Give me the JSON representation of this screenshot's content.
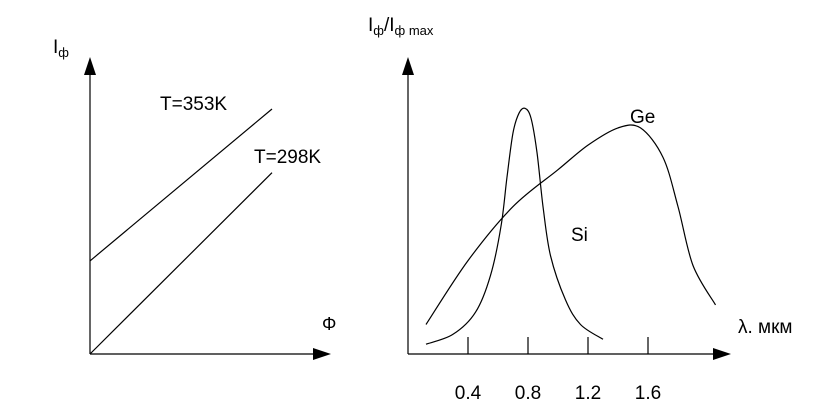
{
  "chart_data": [
    {
      "type": "line",
      "ylabel": {
        "main": "I",
        "sub": "ф"
      },
      "xlabel": "Φ",
      "series": [
        {
          "name": "T=353K",
          "x": [
            0,
            1
          ],
          "y": [
            0.38,
            1.0
          ]
        },
        {
          "name": "T=298K",
          "x": [
            0,
            1
          ],
          "y": [
            0.0,
            0.74
          ]
        }
      ],
      "xlim": [
        0,
        1
      ],
      "ylim": [
        0,
        1.2
      ],
      "grid": false
    },
    {
      "type": "line",
      "ylabel": {
        "main": "I",
        "sub": "ф",
        "sep": "/I",
        "sub2": "ф max"
      },
      "xlabel": "λ. мкм",
      "tick_labels": [
        "0.4",
        "0.8",
        "1.2",
        "1.6"
      ],
      "xticks": [
        0.4,
        0.8,
        1.2,
        1.6
      ],
      "xlim": [
        0,
        2.1
      ],
      "ylim": [
        0,
        1.05
      ],
      "grid": false,
      "series": [
        {
          "name": "Si",
          "x": [
            0.12,
            0.3,
            0.45,
            0.55,
            0.62,
            0.66,
            0.7,
            0.74,
            0.78,
            0.82,
            0.86,
            0.9,
            0.95,
            1.05,
            1.15,
            1.3
          ],
          "y": [
            0.04,
            0.08,
            0.17,
            0.32,
            0.52,
            0.72,
            0.9,
            0.98,
            1.0,
            0.96,
            0.82,
            0.6,
            0.4,
            0.22,
            0.12,
            0.06
          ]
        },
        {
          "name": "Ge",
          "x": [
            0.12,
            0.4,
            0.7,
            1.0,
            1.2,
            1.4,
            1.55,
            1.7,
            1.8,
            1.9,
            2.05
          ],
          "y": [
            0.12,
            0.38,
            0.6,
            0.75,
            0.85,
            0.92,
            0.92,
            0.8,
            0.6,
            0.36,
            0.2
          ]
        }
      ]
    }
  ]
}
